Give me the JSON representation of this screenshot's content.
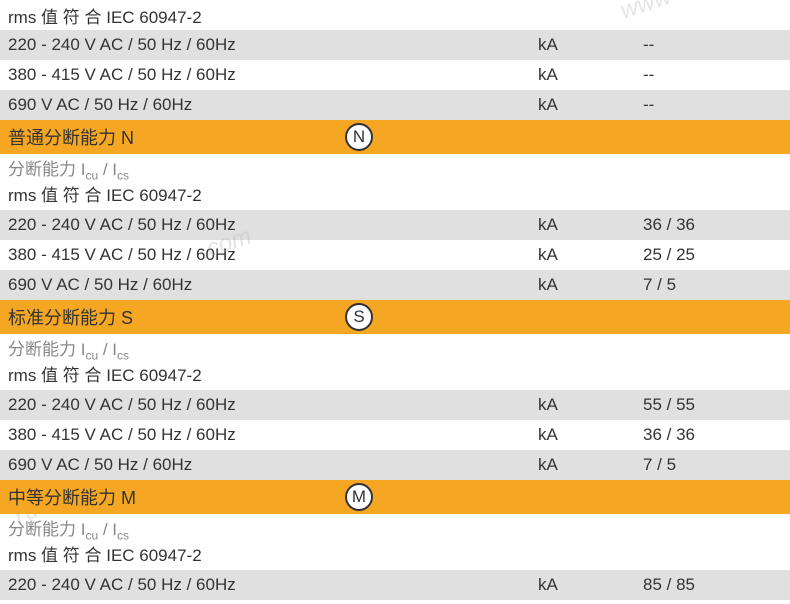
{
  "colors": {
    "section_bg": "#f5a623",
    "gray_row": "#e0e0e0",
    "white_row": "#ffffff",
    "text": "#333333",
    "gray_text": "#888888",
    "badge_border": "#333333"
  },
  "top": {
    "line1": "rms 值 符 合 IEC 60947-2",
    "rows": [
      {
        "label": "220 - 240 V AC / 50 Hz / 60Hz",
        "unit": "kA",
        "value": "--"
      },
      {
        "label": "380 - 415 V AC / 50 Hz / 60Hz",
        "unit": "kA",
        "value": "--"
      },
      {
        "label": "690 V AC / 50 Hz / 60Hz",
        "unit": "kA",
        "value": "--"
      }
    ]
  },
  "sections": [
    {
      "title": "普通分断能力 N",
      "badge": "N",
      "sub1": "分断能力 I",
      "sub1_s1": "cu",
      "sub1_mid": " / I",
      "sub1_s2": "cs",
      "sub2": "rms 值 符 合 IEC 60947-2",
      "rows": [
        {
          "label": "220 - 240 V AC / 50 Hz / 60Hz",
          "unit": "kA",
          "value": "36 / 36"
        },
        {
          "label": "380 - 415 V AC / 50 Hz / 60Hz",
          "unit": "kA",
          "value": "25 / 25"
        },
        {
          "label": "690 V AC / 50 Hz / 60Hz",
          "unit": "kA",
          "value": "7 / 5"
        }
      ]
    },
    {
      "title": "标准分断能力 S",
      "badge": "S",
      "sub1": "分断能力 I",
      "sub1_s1": "cu",
      "sub1_mid": " / I",
      "sub1_s2": "cs",
      "sub2": "rms 值 符 合 IEC 60947-2",
      "rows": [
        {
          "label": "220 - 240 V AC / 50 Hz / 60Hz",
          "unit": "kA",
          "value": "55 / 55"
        },
        {
          "label": "380 - 415 V AC / 50 Hz / 60Hz",
          "unit": "kA",
          "value": "36 / 36"
        },
        {
          "label": "690 V AC / 50 Hz / 60Hz",
          "unit": "kA",
          "value": "7 / 5"
        }
      ]
    },
    {
      "title": "中等分断能力 M",
      "badge": "M",
      "sub1": "分断能力 I",
      "sub1_s1": "cu",
      "sub1_mid": " / I",
      "sub1_s2": "cs",
      "sub2": "rms 值 符 合 IEC 60947-2",
      "rows": [
        {
          "label": "220 - 240 V AC / 50 Hz / 60Hz",
          "unit": "kA",
          "value": "85 / 85"
        }
      ]
    }
  ],
  "watermarks": {
    "wm1": "www",
    "wm2": ".com",
    "wm3": "Yu",
    "wm4": ""
  }
}
